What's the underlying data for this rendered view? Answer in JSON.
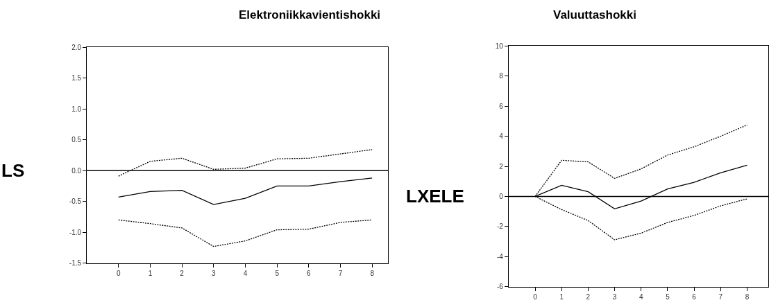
{
  "chart_data": [
    {
      "type": "line",
      "title": "Elektroniikkavientishokki",
      "ylabel": "LS",
      "x": [
        0,
        1,
        2,
        3,
        4,
        5,
        6,
        7,
        8
      ],
      "series": [
        {
          "color": "#000000",
          "line_style": "dotted",
          "values": [
            -0.09,
            0.15,
            0.2,
            0.02,
            0.04,
            0.19,
            0.2,
            0.27,
            0.34
          ]
        },
        {
          "color": "#000000",
          "line_style": "solid",
          "values": [
            -0.43,
            -0.34,
            -0.32,
            -0.55,
            -0.45,
            -0.25,
            -0.25,
            -0.18,
            -0.12
          ]
        },
        {
          "color": "#000000",
          "line_style": "dotted",
          "values": [
            -0.8,
            -0.86,
            -0.93,
            -1.23,
            -1.14,
            -0.96,
            -0.95,
            -0.84,
            -0.8
          ]
        }
      ],
      "xlim": [
        -1,
        8.5
      ],
      "xticks": [
        0,
        1,
        2,
        3,
        4,
        5,
        6,
        7,
        8
      ],
      "ylim": [
        -1.5,
        2.0
      ],
      "yticks": [
        {
          "value": -1.5,
          "label": "-1.5"
        },
        {
          "value": -1.0,
          "label": "-1.0"
        },
        {
          "value": -0.5,
          "label": "-0.5"
        },
        {
          "value": 0,
          "label": "0.0"
        },
        {
          "value": 0.5,
          "label": "0.5"
        },
        {
          "value": 1.0,
          "label": "1.0"
        },
        {
          "value": 1.5,
          "label": "1.5"
        },
        {
          "value": 2.0,
          "label": "2.0"
        }
      ],
      "ref_lines": [
        {
          "axis": "y",
          "value": 0,
          "color": "#000000"
        }
      ]
    },
    {
      "type": "line",
      "title": "Valuuttashokki",
      "ylabel": "LXELE",
      "x": [
        0,
        1,
        2,
        3,
        4,
        5,
        6,
        7,
        8
      ],
      "series": [
        {
          "color": "#000000",
          "line_style": "dotted",
          "values": [
            0,
            2.4,
            2.3,
            1.2,
            1.83,
            2.75,
            3.3,
            4.0,
            4.75
          ]
        },
        {
          "color": "#000000",
          "line_style": "solid",
          "values": [
            0,
            0.74,
            0.31,
            -0.82,
            -0.31,
            0.5,
            0.94,
            1.57,
            2.08
          ]
        },
        {
          "color": "#000000",
          "line_style": "dotted",
          "values": [
            0,
            -0.87,
            -1.6,
            -2.88,
            -2.44,
            -1.73,
            -1.26,
            -0.63,
            -0.16
          ]
        }
      ],
      "xlim": [
        -1,
        8.8
      ],
      "xticks": [
        0,
        1,
        2,
        3,
        4,
        5,
        6,
        7,
        8
      ],
      "ylim": [
        -6,
        10
      ],
      "yticks": [
        -6,
        -4,
        -2,
        0,
        2,
        4,
        6,
        8,
        10
      ],
      "ref_lines": [
        {
          "axis": "y",
          "value": 0,
          "color": "#000000"
        }
      ]
    }
  ]
}
